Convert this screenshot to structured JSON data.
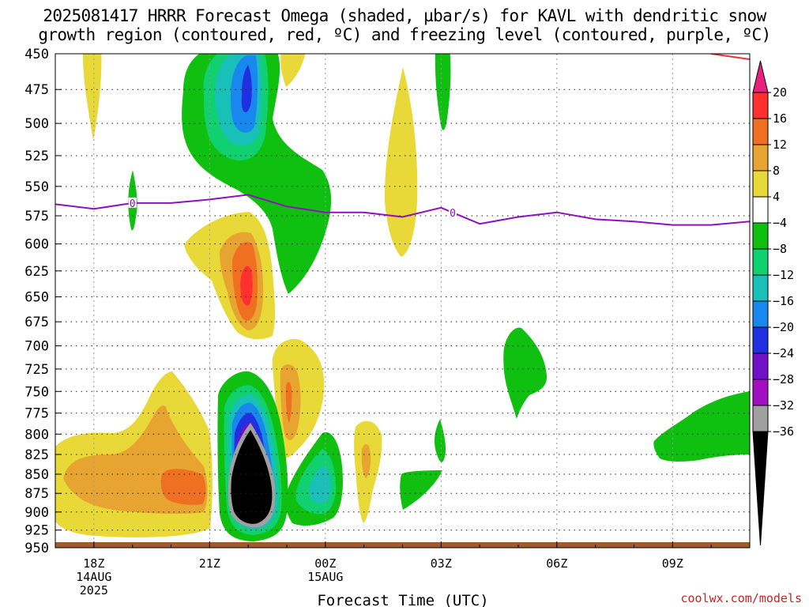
{
  "title": {
    "line1": "2025081417 HRRR Forecast Omega (shaded, µbar/s) for KAVL with dendritic snow",
    "line2": "growth region (contoured, red, ºC) and freezing level (contoured, purple, ºC)"
  },
  "credit": "coolwx.com/models",
  "chart_data": {
    "type": "contour",
    "xlabel": "Forecast Time (UTC)",
    "ylabel": "",
    "x_ticks": [
      {
        "label": "18Z",
        "sub": [
          "14AUG",
          "2025"
        ],
        "hour": 18
      },
      {
        "label": "21Z",
        "sub": [],
        "hour": 21
      },
      {
        "label": "00Z",
        "sub": [
          "15AUG"
        ],
        "hour": 24
      },
      {
        "label": "03Z",
        "sub": [],
        "hour": 27
      },
      {
        "label": "06Z",
        "sub": [],
        "hour": 30
      },
      {
        "label": "09Z",
        "sub": [],
        "hour": 33
      }
    ],
    "xlim": [
      17,
      35
    ],
    "y_ticks": [
      450,
      475,
      500,
      525,
      550,
      575,
      600,
      625,
      650,
      675,
      700,
      725,
      750,
      775,
      800,
      825,
      850,
      875,
      900,
      925,
      950
    ],
    "ylim": [
      950,
      450
    ],
    "y_scale": "log-pressure",
    "grid": true,
    "colorbar": {
      "levels": [
        "20",
        "16",
        "12",
        "8",
        "4",
        "−4",
        "−8",
        "−12",
        "−16",
        "−20",
        "−24",
        "−28",
        "−32",
        "−36"
      ],
      "colors": [
        "#ff3030",
        "#ee7020",
        "#e8a430",
        "#e8d838",
        "#ffffff",
        "#10c010",
        "#10d070",
        "#18c0b8",
        "#1888ee",
        "#2030e0",
        "#7010c8",
        "#a010c0",
        "#a0a0a0",
        "#000000"
      ],
      "top_color": "#e8207e",
      "bottom_color": "#000000"
    },
    "freezing_level": {
      "label": "0",
      "color": "#9010c0",
      "hours": [
        17.0,
        18.0,
        19.0,
        20.0,
        21.0,
        22.0,
        23.0,
        24.0,
        25.0,
        26.0,
        27.0,
        28.0,
        29.0,
        30.0,
        31.0,
        32.0,
        33.0,
        34.0,
        35.0
      ],
      "pressure": [
        565,
        569,
        564,
        564,
        561,
        557,
        567,
        572,
        572,
        576,
        568,
        582,
        576,
        572,
        578,
        580,
        583,
        583,
        580
      ]
    },
    "dgz_contour_color": "#ee3030",
    "ground_color": "#a05a2c"
  }
}
